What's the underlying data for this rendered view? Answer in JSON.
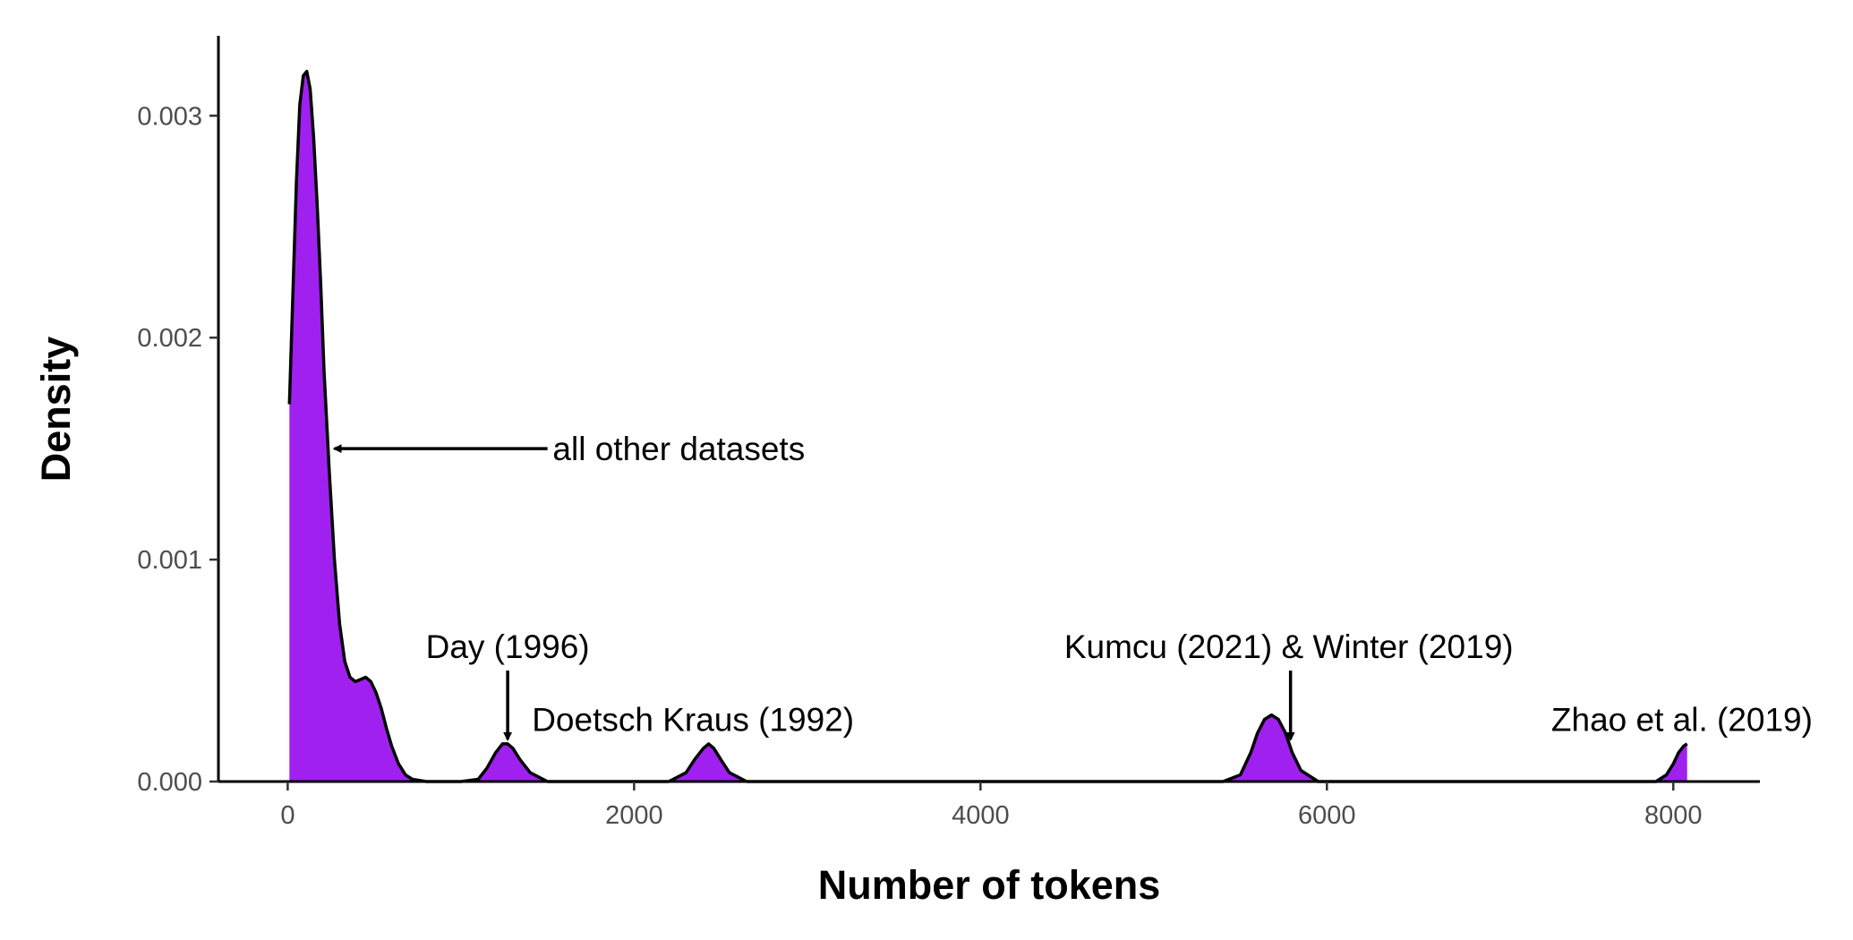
{
  "chart_data": {
    "type": "area",
    "title": "",
    "xlabel": "Number of tokens",
    "ylabel": "Density",
    "xlim": [
      -400,
      8500
    ],
    "ylim": [
      0,
      0.00336
    ],
    "grid": false,
    "legend": "none",
    "x_ticks": [
      {
        "value": 0,
        "label": "0"
      },
      {
        "value": 2000,
        "label": "2000"
      },
      {
        "value": 4000,
        "label": "4000"
      },
      {
        "value": 6000,
        "label": "6000"
      },
      {
        "value": 8000,
        "label": "8000"
      }
    ],
    "y_ticks": [
      {
        "value": 0,
        "label": "0.000"
      },
      {
        "value": 0.001,
        "label": "0.001"
      },
      {
        "value": 0.002,
        "label": "0.002"
      },
      {
        "value": 0.003,
        "label": "0.003"
      }
    ],
    "series": [
      {
        "fill": "#a020f0",
        "line": "#000000",
        "x": [
          10,
          30,
          50,
          70,
          90,
          110,
          130,
          150,
          170,
          190,
          210,
          240,
          270,
          300,
          330,
          360,
          390,
          420,
          450,
          480,
          510,
          540,
          570,
          600,
          640,
          680,
          720,
          800,
          900,
          1000,
          1100,
          1150,
          1200,
          1240,
          1270,
          1300,
          1340,
          1400,
          1500,
          1700,
          2000,
          2200,
          2300,
          2350,
          2400,
          2430,
          2460,
          2500,
          2550,
          2650,
          3000,
          4000,
          5000,
          5400,
          5500,
          5560,
          5600,
          5640,
          5680,
          5720,
          5760,
          5800,
          5850,
          5950,
          6500,
          7500,
          7900,
          7960,
          8000,
          8030,
          8060,
          8080
        ],
        "y": [
          0.0017,
          0.0022,
          0.0027,
          0.00305,
          0.00318,
          0.0032,
          0.00312,
          0.0029,
          0.0026,
          0.00225,
          0.00185,
          0.0014,
          0.001,
          0.00071,
          0.00054,
          0.00047,
          0.00045,
          0.00046,
          0.00047,
          0.00045,
          0.0004,
          0.00033,
          0.00024,
          0.00016,
          8e-05,
          3e-05,
          1e-05,
          0.0,
          0.0,
          0.0,
          1e-05,
          6e-05,
          0.00013,
          0.00017,
          0.00017,
          0.00015,
          0.0001,
          4e-05,
          0.0,
          0.0,
          0.0,
          0.0,
          4e-05,
          0.0001,
          0.00015,
          0.00017,
          0.00015,
          0.0001,
          4e-05,
          0.0,
          0.0,
          0.0,
          0.0,
          0.0,
          3e-05,
          0.00013,
          0.00022,
          0.00028,
          0.0003,
          0.00028,
          0.00022,
          0.00013,
          5e-05,
          0.0,
          0.0,
          0.0,
          0.0,
          3e-05,
          8e-05,
          0.00013,
          0.00016,
          0.00017
        ]
      }
    ],
    "annotations": [
      {
        "text": "all other datasets",
        "text_x": 1530,
        "text_y": 0.0015,
        "anchor": "start",
        "arrow": {
          "from_x": 1500,
          "from_y": 0.0015,
          "to_x": 270,
          "to_y": 0.0015
        }
      },
      {
        "text": "Day (1996)",
        "text_x": 1270,
        "text_y": 0.00061,
        "anchor": "middle",
        "arrow": {
          "from_x": 1270,
          "from_y": 0.0005,
          "to_x": 1270,
          "to_y": 0.00019
        }
      },
      {
        "text": "Doetsch Kraus (1992)",
        "text_x": 1410,
        "text_y": 0.00028,
        "anchor": "start",
        "arrow": null
      },
      {
        "text": "Kumcu (2021) & Winter (2019)",
        "text_x": 5780,
        "text_y": 0.00061,
        "anchor": "middle",
        "arrow": {
          "from_x": 5790,
          "from_y": 0.0005,
          "to_x": 5790,
          "to_y": 0.00019
        }
      },
      {
        "text": "Zhao et al. (2019)",
        "text_x": 8050,
        "text_y": 0.00028,
        "anchor": "middle",
        "arrow": null
      }
    ]
  }
}
